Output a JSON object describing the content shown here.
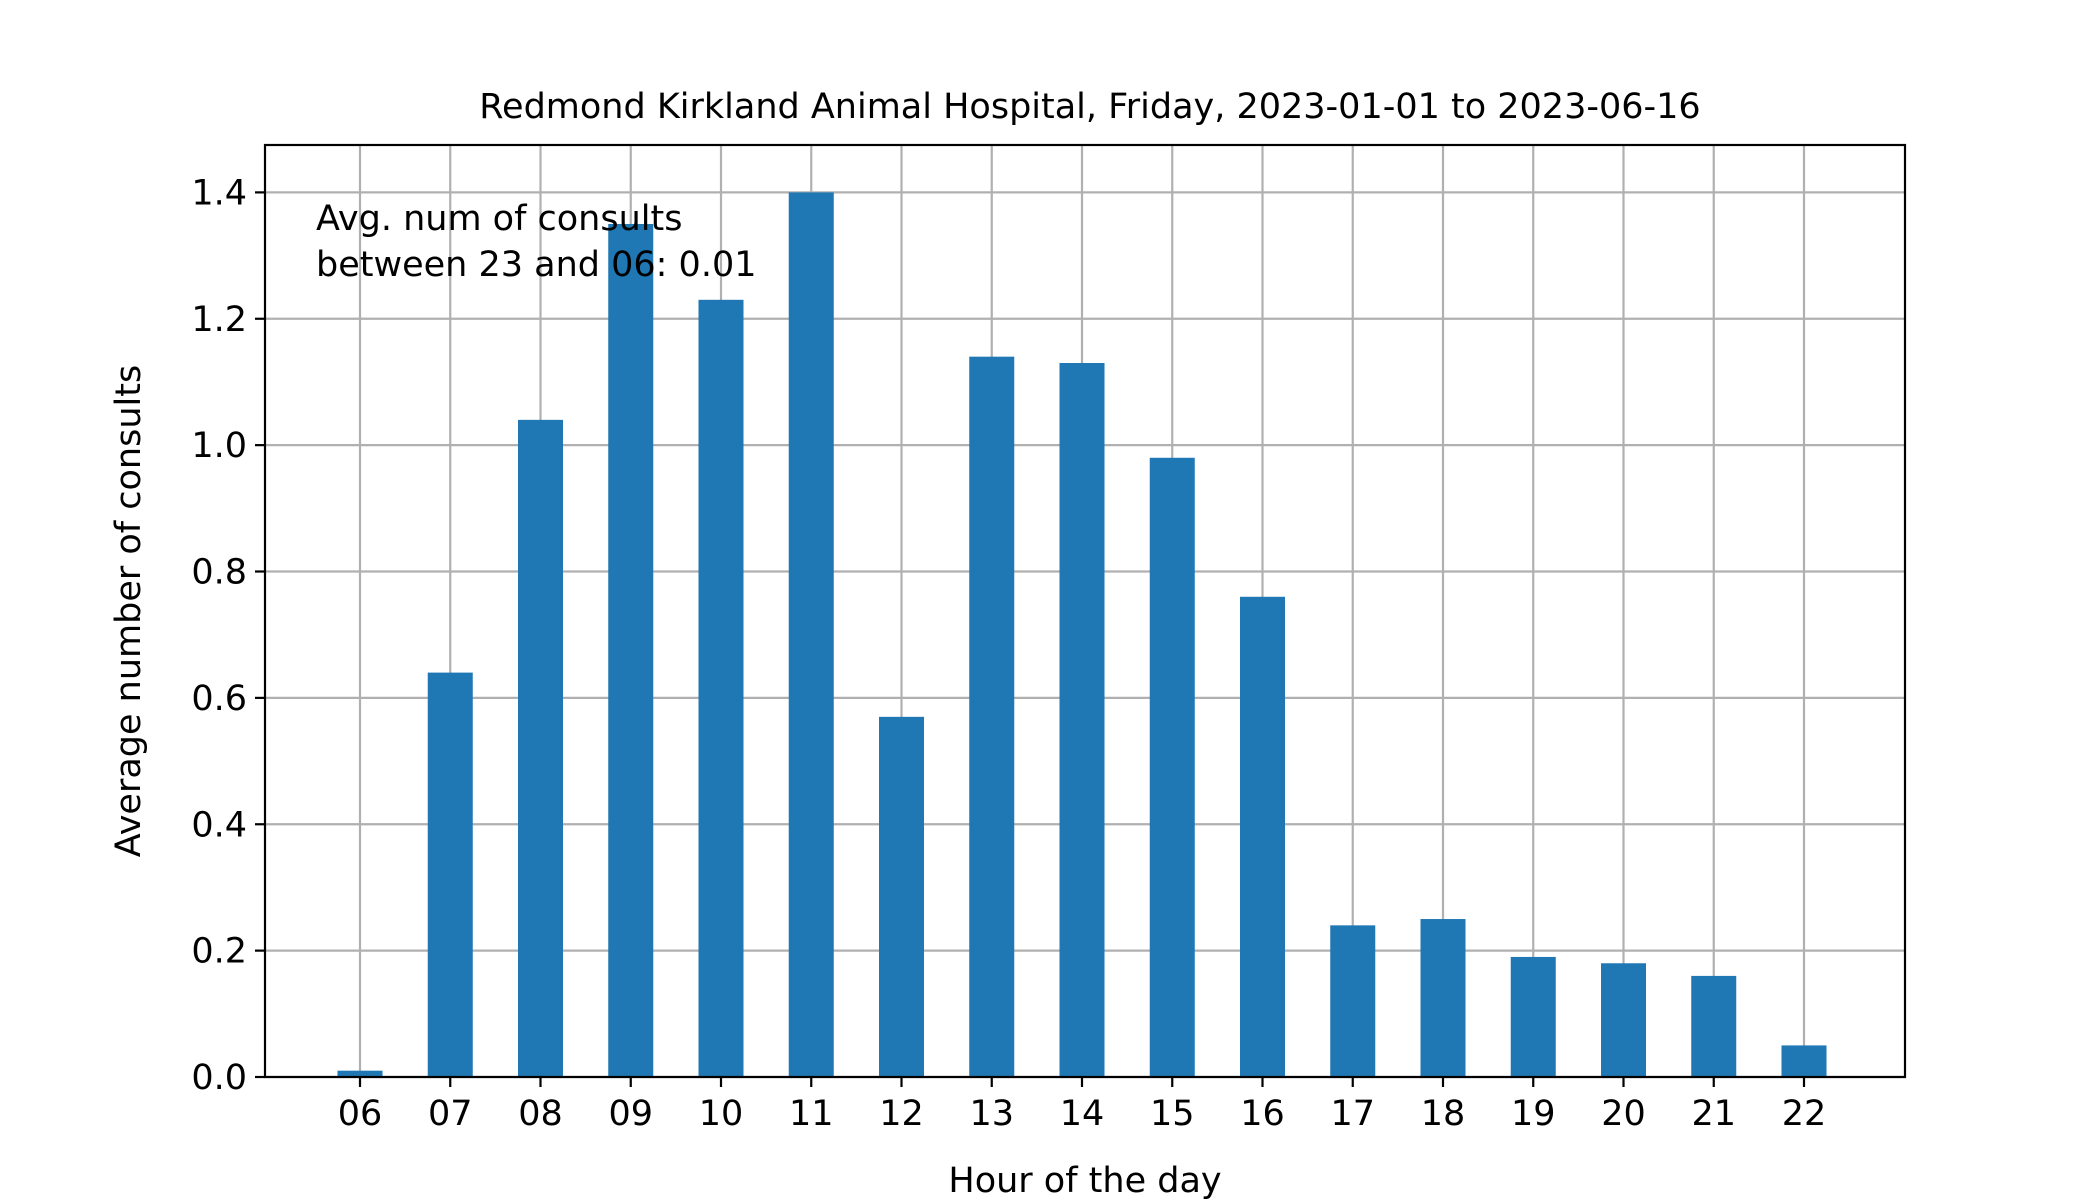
{
  "chart_data": {
    "type": "bar",
    "title": "Redmond Kirkland Animal Hospital, Friday, 2023-01-01 to 2023-06-16",
    "xlabel": "Hour of the day",
    "ylabel": "Average number of consults",
    "categories": [
      "06",
      "07",
      "08",
      "09",
      "10",
      "11",
      "12",
      "13",
      "14",
      "15",
      "16",
      "17",
      "18",
      "19",
      "20",
      "21",
      "22"
    ],
    "values": [
      0.01,
      0.64,
      1.04,
      1.35,
      1.23,
      1.4,
      0.57,
      1.14,
      1.13,
      0.98,
      0.76,
      0.24,
      0.25,
      0.19,
      0.18,
      0.16,
      0.05
    ],
    "ylim": [
      0,
      1.475
    ],
    "yticks": [
      0.0,
      0.2,
      0.4,
      0.6,
      0.8,
      1.0,
      1.2,
      1.4
    ],
    "ytick_labels": [
      "0.0",
      "0.2",
      "0.4",
      "0.6",
      "0.8",
      "1.0",
      "1.2",
      "1.4"
    ],
    "grid": true,
    "bar_color": "#1f77b4",
    "annotation_lines": [
      "Avg. num of consults",
      "between 23 and 06: 0.01"
    ]
  }
}
